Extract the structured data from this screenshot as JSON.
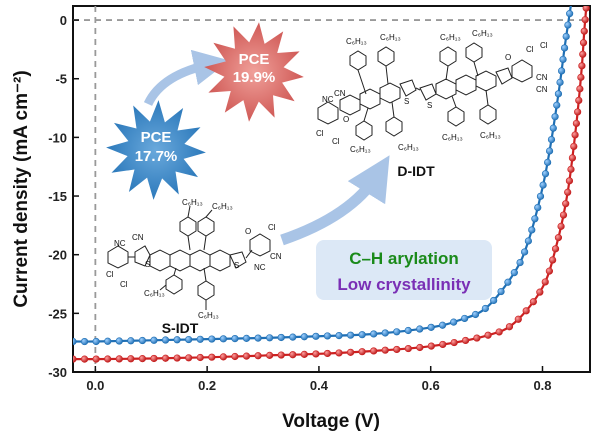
{
  "chart_data": {
    "type": "line",
    "xlabel": "Voltage (V)",
    "ylabel": "Current density (mA cm⁻²)",
    "xlim": [
      -0.04,
      0.885
    ],
    "ylim": [
      -30,
      1.2
    ],
    "x_ticks": [
      "0.0",
      "0.2",
      "0.4",
      "0.6",
      "0.8"
    ],
    "x_tick_values": [
      0,
      0.2,
      0.4,
      0.6,
      0.8
    ],
    "y_ticks": [
      "0",
      "-5",
      "-10",
      "-15",
      "-20",
      "-25",
      "-30"
    ],
    "y_tick_values": [
      0,
      -5,
      -10,
      -15,
      -20,
      -25,
      -30
    ],
    "reference_lines": [
      {
        "axis": "x",
        "value": 0
      },
      {
        "axis": "y",
        "value": 0
      }
    ],
    "series": [
      {
        "color": "#1f6fb4",
        "x": [
          -0.04,
          0.0,
          0.1,
          0.2,
          0.3,
          0.4,
          0.5,
          0.6,
          0.65,
          0.7,
          0.75,
          0.775,
          0.8,
          0.815,
          0.83,
          0.84,
          0.85,
          0.855
        ],
        "y": [
          -27.4,
          -27.4,
          -27.3,
          -27.2,
          -27.1,
          -26.95,
          -26.75,
          -26.2,
          -25.6,
          -24.5,
          -21.5,
          -18.8,
          -14.3,
          -10.5,
          -5.8,
          -2.2,
          1.0,
          2.5
        ]
      },
      {
        "color": "#cc2020",
        "x": [
          -0.04,
          0.0,
          0.1,
          0.2,
          0.3,
          0.4,
          0.5,
          0.6,
          0.7,
          0.75,
          0.8,
          0.825,
          0.845,
          0.86,
          0.87,
          0.875,
          0.88
        ],
        "y": [
          -28.9,
          -28.9,
          -28.85,
          -28.75,
          -28.6,
          -28.45,
          -28.2,
          -27.8,
          -26.9,
          -25.8,
          -22.8,
          -19.2,
          -14.7,
          -9.1,
          -4.2,
          -0.8,
          2.0
        ]
      }
    ],
    "annotations": {
      "pce_low": [
        "PCE",
        "17.7%"
      ],
      "pce_high": [
        "PCE",
        "19.9%"
      ],
      "mol_small": "S-IDT",
      "mol_large": "D-IDT",
      "note_line1": "C–H arylation",
      "note_line2": "Low crystallinity"
    },
    "colors": {
      "pce_low_burst": "#2f80bd",
      "pce_high_burst": "#d9625f",
      "note_line1": "#1a8a1a",
      "note_line2": "#7a2fb5",
      "note_box": "#dce8f6",
      "arrow": "#a9c4e6"
    }
  },
  "structure_labels": {
    "cl": "Cl",
    "nc": "NC",
    "cn": "CN",
    "o": "O",
    "s": "S",
    "hexyl": "C₆H₁₃"
  }
}
